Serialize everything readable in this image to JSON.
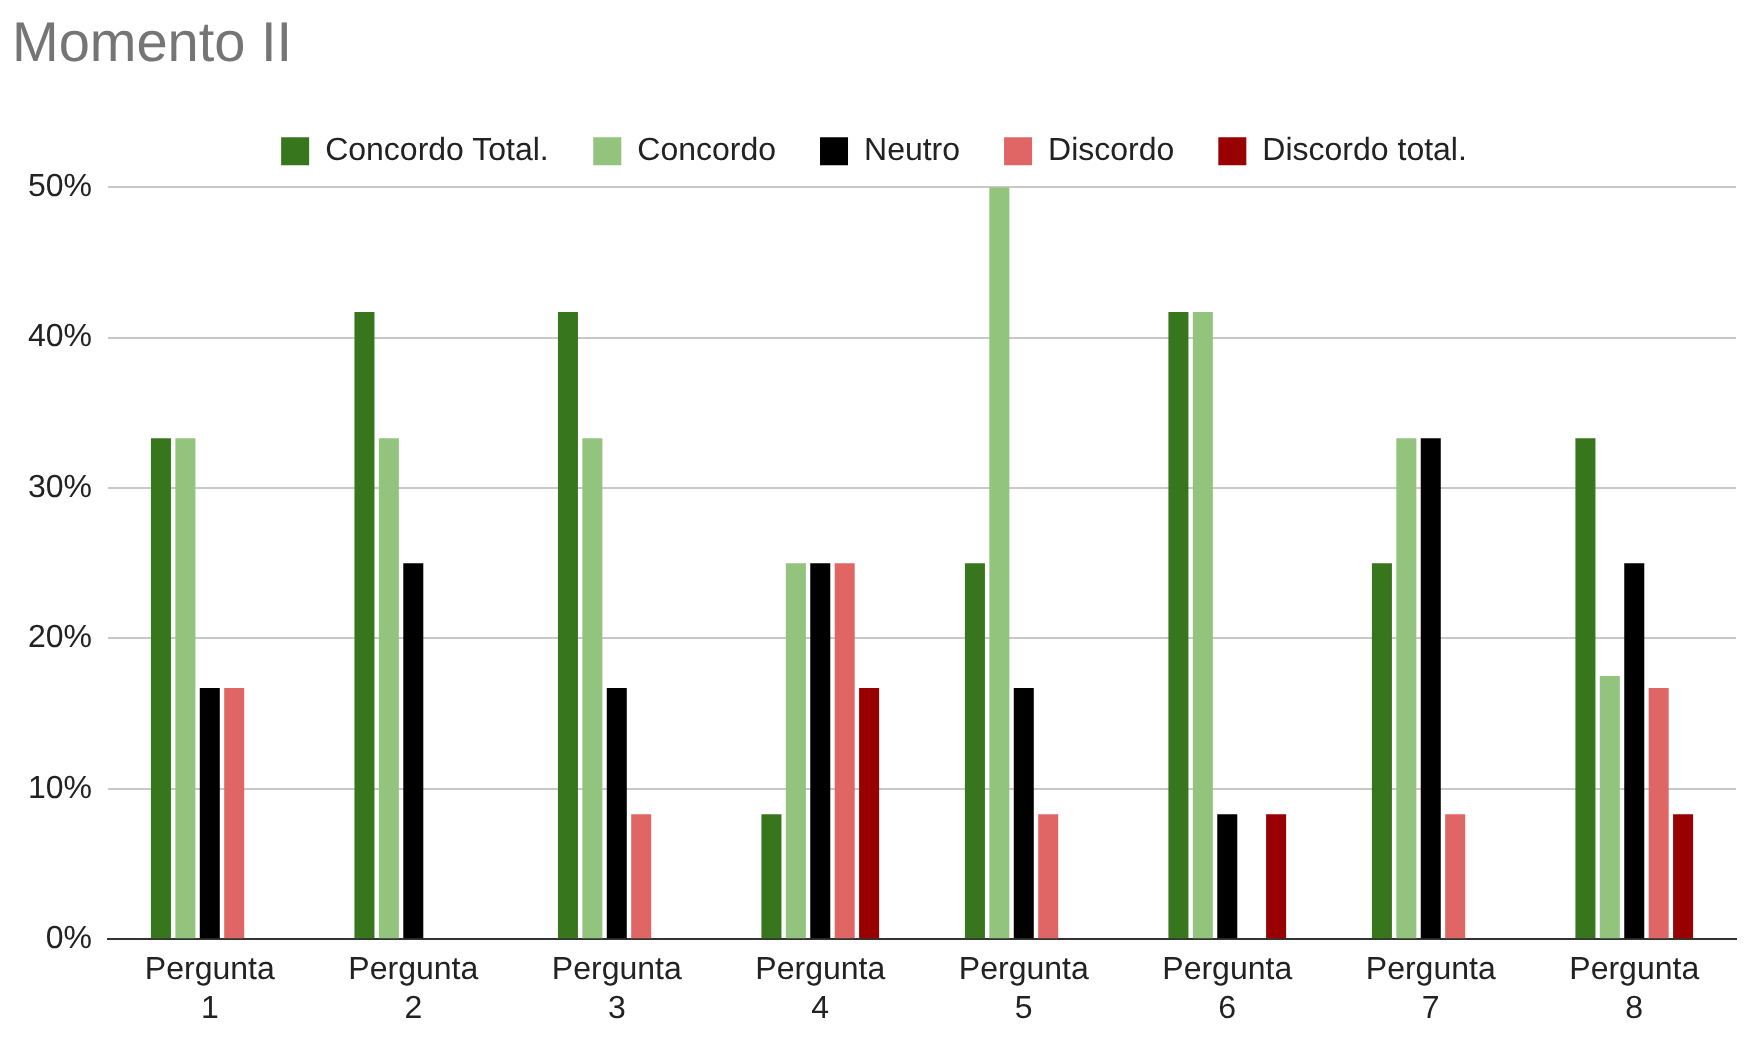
{
  "chart_data": {
    "type": "bar",
    "title": "Momento II",
    "categories": [
      "Pergunta 1",
      "Pergunta 2",
      "Pergunta 3",
      "Pergunta 4",
      "Pergunta 5",
      "Pergunta 6",
      "Pergunta 7",
      "Pergunta 8"
    ],
    "series": [
      {
        "name": "Concordo Total.",
        "color": "#38761d",
        "values": [
          33.3,
          41.7,
          41.7,
          8.3,
          25,
          41.7,
          25,
          33.3
        ]
      },
      {
        "name": "Concordo",
        "color": "#93c47d",
        "values": [
          33.3,
          33.3,
          33.3,
          25,
          50,
          41.7,
          33.3,
          17.5
        ]
      },
      {
        "name": "Neutro",
        "color": "#000000",
        "values": [
          16.7,
          25,
          16.7,
          25,
          16.7,
          8.3,
          33.3,
          25
        ]
      },
      {
        "name": "Discordo",
        "color": "#e06666",
        "values": [
          16.7,
          0,
          8.3,
          25,
          8.3,
          0,
          8.3,
          16.7
        ]
      },
      {
        "name": "Discordo total.",
        "color": "#990000",
        "values": [
          0,
          0,
          0,
          16.7,
          0,
          8.3,
          0,
          8.3
        ]
      }
    ],
    "ylim": [
      0,
      50
    ],
    "yticks": [
      {
        "value": 0,
        "label": "0%"
      },
      {
        "value": 10,
        "label": "10%"
      },
      {
        "value": 20,
        "label": "20%"
      },
      {
        "value": 30,
        "label": "30%"
      },
      {
        "value": 40,
        "label": "40%"
      },
      {
        "value": 50,
        "label": "50%"
      }
    ],
    "grid": "y",
    "legend": "top"
  }
}
